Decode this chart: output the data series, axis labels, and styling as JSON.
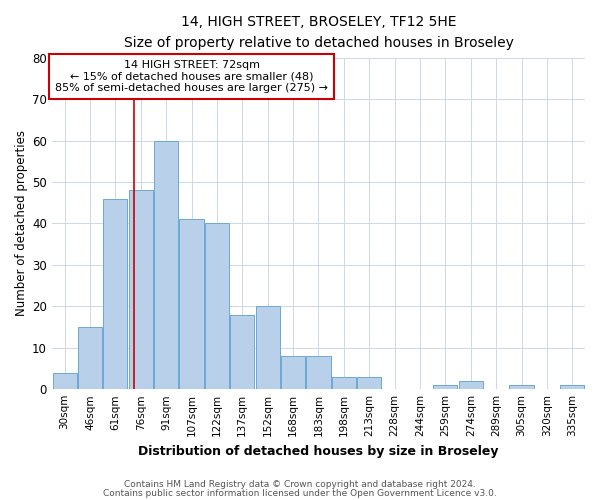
{
  "title": "14, HIGH STREET, BROSELEY, TF12 5HE",
  "subtitle": "Size of property relative to detached houses in Broseley",
  "xlabel": "Distribution of detached houses by size in Broseley",
  "ylabel": "Number of detached properties",
  "footnote1": "Contains HM Land Registry data © Crown copyright and database right 2024.",
  "footnote2": "Contains public sector information licensed under the Open Government Licence v3.0.",
  "categories": [
    "30sqm",
    "46sqm",
    "61sqm",
    "76sqm",
    "91sqm",
    "107sqm",
    "122sqm",
    "137sqm",
    "152sqm",
    "168sqm",
    "183sqm",
    "198sqm",
    "213sqm",
    "228sqm",
    "244sqm",
    "259sqm",
    "274sqm",
    "289sqm",
    "305sqm",
    "320sqm",
    "335sqm"
  ],
  "values": [
    4,
    15,
    46,
    48,
    60,
    41,
    40,
    18,
    20,
    8,
    8,
    3,
    3,
    0,
    0,
    1,
    2,
    0,
    1,
    0,
    1
  ],
  "bar_color": "#b8d0ea",
  "bar_edge_color": "#6aaad4",
  "ylim": [
    0,
    80
  ],
  "yticks": [
    0,
    10,
    20,
    30,
    40,
    50,
    60,
    70,
    80
  ],
  "annotation_title": "14 HIGH STREET: 72sqm",
  "annotation_line1": "← 15% of detached houses are smaller (48)",
  "annotation_line2": "85% of semi-detached houses are larger (275) →",
  "red_line_color": "#cc0000",
  "annotation_box_edge_color": "#cc0000",
  "background_color": "#ffffff",
  "grid_color": "#ccd8e8"
}
